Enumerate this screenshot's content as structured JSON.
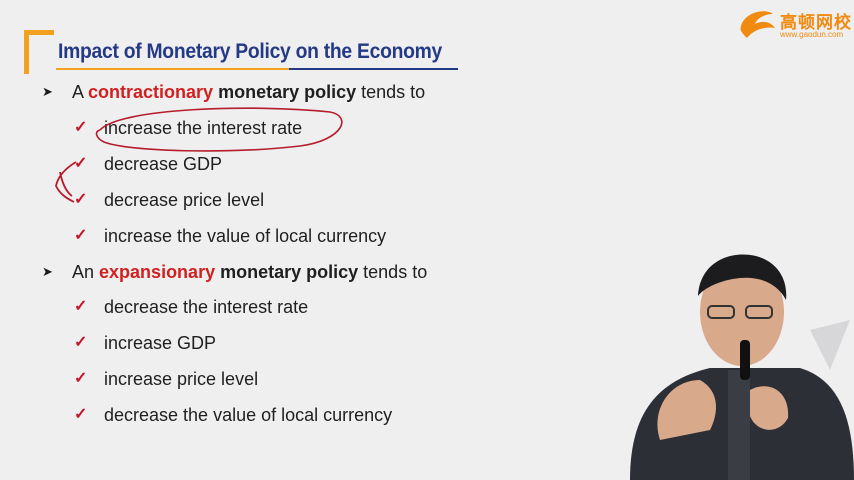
{
  "logo": {
    "name": "高顿网校",
    "url": "www.gaodun.com"
  },
  "slide": {
    "title": "Impact of Monetary Policy on the Economy",
    "sections": [
      {
        "prefix": "A ",
        "highlight": "contractionary",
        "mid": " ",
        "bold": "monetary policy",
        "suffix": " tends to",
        "items": [
          "increase the interest rate",
          "decrease GDP",
          "decrease price level",
          "increase the value of local currency"
        ]
      },
      {
        "prefix": "An ",
        "highlight": "expansionary",
        "mid": " ",
        "bold": "monetary policy",
        "suffix": " tends to",
        "items": [
          "decrease the interest rate",
          "increase GDP",
          "increase price level",
          "decrease the value of local currency"
        ]
      }
    ]
  },
  "colors": {
    "title": "#253a86",
    "accent": "#f2a01d",
    "highlight": "#d21f1f",
    "check": "#c3162b"
  },
  "icons": {
    "bullet": "arrowhead-bullet-icon",
    "check": "checkmark-icon"
  }
}
